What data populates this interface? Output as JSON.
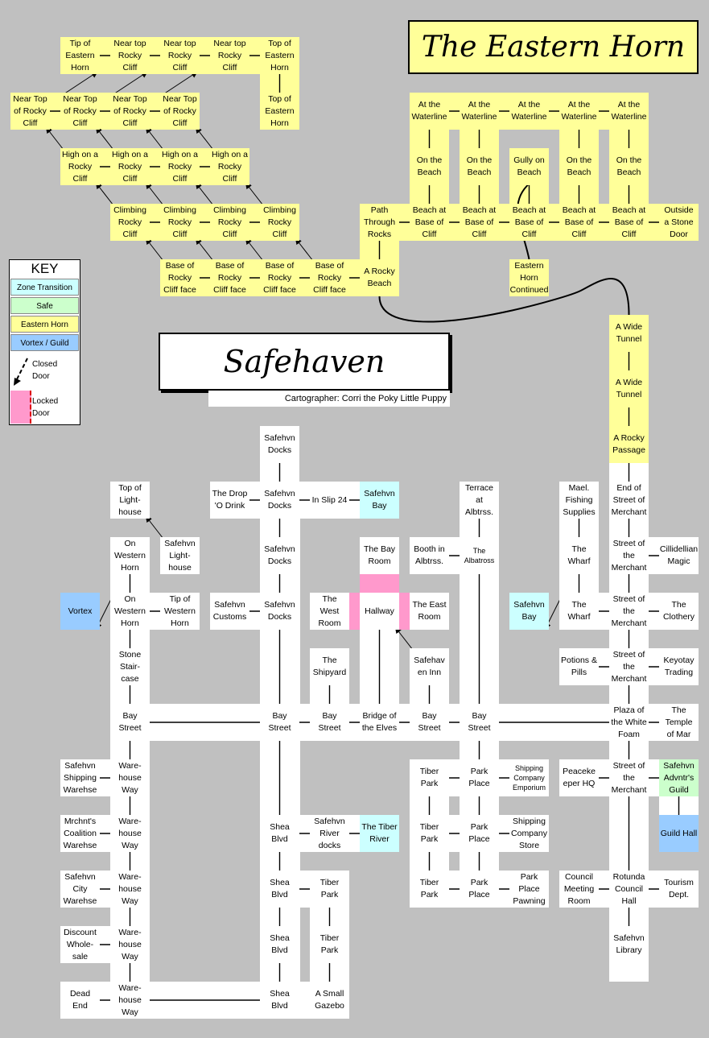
{
  "titles": {
    "eastern_horn": "The Eastern Horn",
    "safehaven": "Safehaven",
    "cartographer": "Cartographer: Corri the Poky Little Puppy"
  },
  "key": {
    "title": "KEY",
    "zone_transition": "Zone Transition",
    "safe": "Safe",
    "eastern_horn": "Eastern Horn",
    "vortex_guild": "Vortex / Guild",
    "closed_door": "Closed\nDoor",
    "locked_door": "Locked\nDoor"
  },
  "colors": {
    "background": "#c0c0c0",
    "eastern_horn": "#ffff99",
    "zone_transition": "#ccffff",
    "safe": "#ccffcc",
    "vortex_guild": "#99ccff",
    "locked_door": "#ff99cc",
    "safehaven_room": "#ffffff"
  },
  "rooms": [
    {
      "id": "eh1",
      "label": "Tip of\nEastern\nHorn",
      "type": "eh",
      "c": 1,
      "r": 0
    },
    {
      "id": "eh2",
      "label": "Near top\nRocky\nCliff",
      "type": "eh",
      "c": 2,
      "r": 0
    },
    {
      "id": "eh3",
      "label": "Near top\nRocky\nCliff",
      "type": "eh",
      "c": 3,
      "r": 0
    },
    {
      "id": "eh4",
      "label": "Near top\nRocky\nCliff",
      "type": "eh",
      "c": 4,
      "r": 0
    },
    {
      "id": "eh5",
      "label": "Top of\nEastern\nHorn",
      "type": "eh",
      "c": 5,
      "r": 0
    },
    {
      "id": "eh6",
      "label": "Near Top\nof Rocky\nCliff",
      "type": "eh",
      "c": 0,
      "r": 1
    },
    {
      "id": "eh7",
      "label": "Near Top\nof Rocky\nCliff",
      "type": "eh",
      "c": 1,
      "r": 1
    },
    {
      "id": "eh8",
      "label": "Near Top\nof Rocky\nCliff",
      "type": "eh",
      "c": 2,
      "r": 1
    },
    {
      "id": "eh9",
      "label": "Near Top\nof Rocky\nCliff",
      "type": "eh",
      "c": 3,
      "r": 1
    },
    {
      "id": "eh10",
      "label": "Top of\nEastern\nHorn",
      "type": "eh",
      "c": 5,
      "r": 1
    },
    {
      "id": "eh11",
      "label": "High on a\nRocky\nCliff",
      "type": "eh",
      "c": 1,
      "r": 2
    },
    {
      "id": "eh12",
      "label": "High on a\nRocky\nCliff",
      "type": "eh",
      "c": 2,
      "r": 2
    },
    {
      "id": "eh13",
      "label": "High on a\nRocky\nCliff",
      "type": "eh",
      "c": 3,
      "r": 2
    },
    {
      "id": "eh14",
      "label": "High on a\nRocky\nCliff",
      "type": "eh",
      "c": 4,
      "r": 2
    },
    {
      "id": "eh15",
      "label": "Climbing\nRocky\nCliff",
      "type": "eh",
      "c": 2,
      "r": 3
    },
    {
      "id": "eh16",
      "label": "Climbing\nRocky\nCliff",
      "type": "eh",
      "c": 3,
      "r": 3
    },
    {
      "id": "eh17",
      "label": "Climbing\nRocky\nCliff",
      "type": "eh",
      "c": 4,
      "r": 3
    },
    {
      "id": "eh18",
      "label": "Climbing\nRocky\nCliff",
      "type": "eh",
      "c": 5,
      "r": 3
    },
    {
      "id": "eh19",
      "label": "Base of\nRocky\nCliff face",
      "type": "eh",
      "c": 3,
      "r": 4
    },
    {
      "id": "eh20",
      "label": "Base of\nRocky\nCliff face",
      "type": "eh",
      "c": 4,
      "r": 4
    },
    {
      "id": "eh21",
      "label": "Base of\nRocky\nCliff face",
      "type": "eh",
      "c": 5,
      "r": 4
    },
    {
      "id": "eh22",
      "label": "Base of\nRocky\nCliff face",
      "type": "eh",
      "c": 6,
      "r": 4
    },
    {
      "id": "eh23",
      "label": "A Rocky\nBeach",
      "type": "eh",
      "c": 7,
      "r": 4
    },
    {
      "id": "eh24",
      "label": "Path\nThrough\nRocks",
      "type": "eh",
      "c": 7,
      "r": 3
    },
    {
      "id": "eh25",
      "label": "At the\nWaterline",
      "type": "eh",
      "c": 8,
      "r": 1
    },
    {
      "id": "eh26",
      "label": "At the\nWaterline",
      "type": "eh",
      "c": 9,
      "r": 1
    },
    {
      "id": "eh27",
      "label": "At the\nWaterline",
      "type": "eh",
      "c": 10,
      "r": 1
    },
    {
      "id": "eh28",
      "label": "At the\nWaterline",
      "type": "eh",
      "c": 11,
      "r": 1
    },
    {
      "id": "eh29",
      "label": "At the\nWaterline",
      "type": "eh",
      "c": 12,
      "r": 1
    },
    {
      "id": "eh30",
      "label": "On the\nBeach",
      "type": "eh",
      "c": 8,
      "r": 2
    },
    {
      "id": "eh31",
      "label": "On the\nBeach",
      "type": "eh",
      "c": 9,
      "r": 2
    },
    {
      "id": "eh32",
      "label": "Gully on\nBeach",
      "type": "eh",
      "c": 10,
      "r": 2
    },
    {
      "id": "eh33",
      "label": "On the\nBeach",
      "type": "eh",
      "c": 11,
      "r": 2
    },
    {
      "id": "eh34",
      "label": "On the\nBeach",
      "type": "eh",
      "c": 12,
      "r": 2
    },
    {
      "id": "eh35",
      "label": "Beach at\nBase of\nCliff",
      "type": "eh",
      "c": 8,
      "r": 3
    },
    {
      "id": "eh36",
      "label": "Beach at\nBase of\nCliff",
      "type": "eh",
      "c": 9,
      "r": 3
    },
    {
      "id": "eh37",
      "label": "Beach at\nBase of\nCliff",
      "type": "eh",
      "c": 10,
      "r": 3
    },
    {
      "id": "eh38",
      "label": "Beach at\nBase of\nCliff",
      "type": "eh",
      "c": 11,
      "r": 3
    },
    {
      "id": "eh39",
      "label": "Beach at\nBase of\nCliff",
      "type": "eh",
      "c": 12,
      "r": 3
    },
    {
      "id": "eh40",
      "label": "Outside\na Stone\nDoor",
      "type": "eh",
      "c": 13,
      "r": 3
    },
    {
      "id": "eh41",
      "label": "Eastern\nHorn\nContinued",
      "type": "eh",
      "c": 10,
      "r": 4
    },
    {
      "id": "eh42",
      "label": "A Wide\nTunnel",
      "type": "eh",
      "c": 12,
      "r": 5
    },
    {
      "id": "eh43",
      "label": "A Wide\nTunnel",
      "type": "eh",
      "c": 12,
      "r": 6
    },
    {
      "id": "eh44",
      "label": "A Rocky\nPassage",
      "type": "eh",
      "c": 12,
      "r": 7
    },
    {
      "id": "s1",
      "label": "Safehvn\nDocks",
      "type": "sf",
      "c": 5,
      "r": 7
    },
    {
      "id": "s2",
      "label": "Top of\nLight-\nhouse",
      "type": "sf",
      "c": 2,
      "r": 8
    },
    {
      "id": "s3",
      "label": "The Drop\n'O Drink",
      "type": "sf",
      "c": 4,
      "r": 8
    },
    {
      "id": "s4",
      "label": "Safehvn\nDocks",
      "type": "sf",
      "c": 5,
      "r": 8
    },
    {
      "id": "s5",
      "label": "In Slip 24",
      "type": "sf",
      "c": 6,
      "r": 8
    },
    {
      "id": "s6",
      "label": "Safehvn\nBay",
      "type": "zt",
      "c": 7,
      "r": 8
    },
    {
      "id": "s7",
      "label": "Terrace\nat\nAlbtrss.",
      "type": "sf",
      "c": 9,
      "r": 8
    },
    {
      "id": "s8",
      "label": "Mael.\nFishing\nSupplies",
      "type": "sf",
      "c": 11,
      "r": 8
    },
    {
      "id": "s9",
      "label": "End of\nStreet of\nMerchant",
      "type": "sf",
      "c": 12,
      "r": 8
    },
    {
      "id": "s10",
      "label": "On\nWestern\nHorn",
      "type": "sf",
      "c": 2,
      "r": 9
    },
    {
      "id": "s11",
      "label": "Safehvn\nLight-\nhouse",
      "type": "sf",
      "c": 3,
      "r": 9
    },
    {
      "id": "s12",
      "label": "Safehvn\nDocks",
      "type": "sf",
      "c": 5,
      "r": 9
    },
    {
      "id": "s13",
      "label": "The Bay\nRoom",
      "type": "sf",
      "c": 7,
      "r": 9
    },
    {
      "id": "s14",
      "label": "Booth in\nAlbtrss.",
      "type": "sf",
      "c": 8,
      "r": 9
    },
    {
      "id": "s15",
      "label": "The\nAlbatross",
      "type": "sf",
      "c": 9,
      "r": 9,
      "small": true
    },
    {
      "id": "s16",
      "label": "The\nWharf",
      "type": "sf",
      "c": 11,
      "r": 9
    },
    {
      "id": "s17",
      "label": "Street of\nthe\nMerchant",
      "type": "sf",
      "c": 12,
      "r": 9
    },
    {
      "id": "s18",
      "label": "Cillidellian\nMagic",
      "type": "sf",
      "c": 13,
      "r": 9
    },
    {
      "id": "s19",
      "label": "Vortex",
      "type": "vg",
      "c": 1,
      "r": 10
    },
    {
      "id": "s20",
      "label": "On\nWestern\nHorn",
      "type": "sf",
      "c": 2,
      "r": 10
    },
    {
      "id": "s21",
      "label": "Tip of\nWestern\nHorn",
      "type": "sf",
      "c": 3,
      "r": 10
    },
    {
      "id": "s22",
      "label": "Safehvn\nCustoms",
      "type": "sf",
      "c": 4,
      "r": 10
    },
    {
      "id": "s23",
      "label": "Safehvn\nDocks",
      "type": "sf",
      "c": 5,
      "r": 10
    },
    {
      "id": "s24",
      "label": "The\nWest\nRoom",
      "type": "sf",
      "c": 6,
      "r": 10
    },
    {
      "id": "s25",
      "label": "Hallway",
      "type": "sf",
      "c": 7,
      "r": 10
    },
    {
      "id": "s26",
      "label": "The East\nRoom",
      "type": "sf",
      "c": 8,
      "r": 10
    },
    {
      "id": "s27",
      "label": "Safehvn\nBay",
      "type": "zt",
      "c": 10,
      "r": 10
    },
    {
      "id": "s28",
      "label": "The\nWharf",
      "type": "sf",
      "c": 11,
      "r": 10
    },
    {
      "id": "s29",
      "label": "Street of\nthe\nMerchant",
      "type": "sf",
      "c": 12,
      "r": 10
    },
    {
      "id": "s30",
      "label": "The\nClothery",
      "type": "sf",
      "c": 13,
      "r": 10
    },
    {
      "id": "s31",
      "label": "Stone\nStair-\ncase",
      "type": "sf",
      "c": 2,
      "r": 11
    },
    {
      "id": "s32",
      "label": "The\nShipyard",
      "type": "sf",
      "c": 6,
      "r": 11
    },
    {
      "id": "s33",
      "label": "Safehav\nen Inn",
      "type": "sf",
      "c": 8,
      "r": 11
    },
    {
      "id": "s34",
      "label": "Potions &\nPills",
      "type": "sf",
      "c": 11,
      "r": 11
    },
    {
      "id": "s35",
      "label": "Street of\nthe\nMerchant",
      "type": "sf",
      "c": 12,
      "r": 11
    },
    {
      "id": "s36",
      "label": "Keyotay\nTrading",
      "type": "sf",
      "c": 13,
      "r": 11
    },
    {
      "id": "s37",
      "label": "Bay\nStreet",
      "type": "sf",
      "c": 2,
      "r": 12
    },
    {
      "id": "s38",
      "label": "Bay\nStreet",
      "type": "sf",
      "c": 5,
      "r": 12
    },
    {
      "id": "s39",
      "label": "Bay\nStreet",
      "type": "sf",
      "c": 6,
      "r": 12
    },
    {
      "id": "s40",
      "label": "Bridge of\nthe Elves",
      "type": "sf",
      "c": 7,
      "r": 12
    },
    {
      "id": "s41",
      "label": "Bay\nStreet",
      "type": "sf",
      "c": 8,
      "r": 12
    },
    {
      "id": "s42",
      "label": "Bay\nStreet",
      "type": "sf",
      "c": 9,
      "r": 12
    },
    {
      "id": "s43",
      "label": "Plaza of\nthe White\nFoam",
      "type": "sf",
      "c": 12,
      "r": 12
    },
    {
      "id": "s44",
      "label": "The\nTemple\nof Mar",
      "type": "sf",
      "c": 13,
      "r": 12
    },
    {
      "id": "s45",
      "label": "Safehvn\nShipping\nWarehse",
      "type": "sf",
      "c": 1,
      "r": 13
    },
    {
      "id": "s46",
      "label": "Ware-\nhouse\nWay",
      "type": "sf",
      "c": 2,
      "r": 13
    },
    {
      "id": "s47",
      "label": "Tiber\nPark",
      "type": "sf",
      "c": 8,
      "r": 13
    },
    {
      "id": "s48",
      "label": "Park\nPlace",
      "type": "sf",
      "c": 9,
      "r": 13
    },
    {
      "id": "s49",
      "label": "Shipping\nCompany\nEmporium",
      "type": "sf",
      "c": 10,
      "r": 13,
      "small": true
    },
    {
      "id": "s50",
      "label": "Peaceke\neper HQ",
      "type": "sf",
      "c": 11,
      "r": 13
    },
    {
      "id": "s51",
      "label": "Street of\nthe\nMerchant",
      "type": "sf",
      "c": 12,
      "r": 13
    },
    {
      "id": "s52",
      "label": "Safehvn\nAdvntr's\nGuild",
      "type": "sg",
      "c": 13,
      "r": 13
    },
    {
      "id": "s53",
      "label": "Mrchnt's\nCoalition\nWarehse",
      "type": "sf",
      "c": 1,
      "r": 14
    },
    {
      "id": "s54",
      "label": "Ware-\nhouse\nWay",
      "type": "sf",
      "c": 2,
      "r": 14
    },
    {
      "id": "s55",
      "label": "Shea\nBlvd",
      "type": "sf",
      "c": 5,
      "r": 14
    },
    {
      "id": "s56",
      "label": "Safehvn\nRiver\ndocks",
      "type": "sf",
      "c": 6,
      "r": 14
    },
    {
      "id": "s57",
      "label": "The Tiber\nRiver",
      "type": "zt",
      "c": 7,
      "r": 14
    },
    {
      "id": "s58",
      "label": "Tiber\nPark",
      "type": "sf",
      "c": 8,
      "r": 14
    },
    {
      "id": "s59",
      "label": "Park\nPlace",
      "type": "sf",
      "c": 9,
      "r": 14
    },
    {
      "id": "s60",
      "label": "Shipping\nCompany\nStore",
      "type": "sf",
      "c": 10,
      "r": 14
    },
    {
      "id": "s61",
      "label": "Guild Hall",
      "type": "vg",
      "c": 13,
      "r": 14
    },
    {
      "id": "s62",
      "label": "Safehvn\nCity\nWarehse",
      "type": "sf",
      "c": 1,
      "r": 15
    },
    {
      "id": "s63",
      "label": "Ware-\nhouse\nWay",
      "type": "sf",
      "c": 2,
      "r": 15
    },
    {
      "id": "s64",
      "label": "Shea\nBlvd",
      "type": "sf",
      "c": 5,
      "r": 15
    },
    {
      "id": "s65",
      "label": "Tiber\nPark",
      "type": "sf",
      "c": 6,
      "r": 15
    },
    {
      "id": "s66",
      "label": "Tiber\nPark",
      "type": "sf",
      "c": 8,
      "r": 15
    },
    {
      "id": "s67",
      "label": "Park\nPlace",
      "type": "sf",
      "c": 9,
      "r": 15
    },
    {
      "id": "s68",
      "label": "Park\nPlace\nPawning",
      "type": "sf",
      "c": 10,
      "r": 15
    },
    {
      "id": "s69",
      "label": "Council\nMeeting\nRoom",
      "type": "sf",
      "c": 11,
      "r": 15
    },
    {
      "id": "s70",
      "label": "Rotunda\nCouncil\nHall",
      "type": "sf",
      "c": 12,
      "r": 15
    },
    {
      "id": "s71",
      "label": "Tourism\nDept.",
      "type": "sf",
      "c": 13,
      "r": 15
    },
    {
      "id": "s72",
      "label": "Discount\nWhole-\nsale",
      "type": "sf",
      "c": 1,
      "r": 16
    },
    {
      "id": "s73",
      "label": "Ware-\nhouse\nWay",
      "type": "sf",
      "c": 2,
      "r": 16
    },
    {
      "id": "s74",
      "label": "Shea\nBlvd",
      "type": "sf",
      "c": 5,
      "r": 16
    },
    {
      "id": "s75",
      "label": "Tiber\nPark",
      "type": "sf",
      "c": 6,
      "r": 16
    },
    {
      "id": "s76",
      "label": "Safehvn\nLibrary",
      "type": "sf",
      "c": 12,
      "r": 16
    },
    {
      "id": "s77",
      "label": "Dead\nEnd",
      "type": "sf",
      "c": 1,
      "r": 17
    },
    {
      "id": "s78",
      "label": "Ware-\nhouse\nWay",
      "type": "sf",
      "c": 2,
      "r": 17
    },
    {
      "id": "s79",
      "label": "Shea\nBlvd",
      "type": "sf",
      "c": 5,
      "r": 17
    },
    {
      "id": "s80",
      "label": "A Small\nGazebo",
      "type": "sf",
      "c": 6,
      "r": 17
    }
  ],
  "links": [
    [
      "eh1",
      "eh2"
    ],
    [
      "eh2",
      "eh3"
    ],
    [
      "eh3",
      "eh4"
    ],
    [
      "eh4",
      "eh5"
    ],
    [
      "eh5",
      "eh10"
    ],
    [
      "eh6",
      "eh7"
    ],
    [
      "eh7",
      "eh8"
    ],
    [
      "eh8",
      "eh9"
    ],
    [
      "eh11",
      "eh12"
    ],
    [
      "eh12",
      "eh13"
    ],
    [
      "eh13",
      "eh14"
    ],
    [
      "eh15",
      "eh16"
    ],
    [
      "eh16",
      "eh17"
    ],
    [
      "eh17",
      "eh18"
    ],
    [
      "eh19",
      "eh20"
    ],
    [
      "eh20",
      "eh21"
    ],
    [
      "eh21",
      "eh22"
    ],
    [
      "eh22",
      "eh23"
    ],
    [
      "eh23",
      "eh24"
    ],
    [
      "eh24",
      "eh35"
    ],
    [
      "eh25",
      "eh26"
    ],
    [
      "eh26",
      "eh27"
    ],
    [
      "eh27",
      "eh28"
    ],
    [
      "eh28",
      "eh29"
    ],
    [
      "eh25",
      "eh30"
    ],
    [
      "eh26",
      "eh31"
    ],
    [
      "eh28",
      "eh33"
    ],
    [
      "eh29",
      "eh34"
    ],
    [
      "eh30",
      "eh35"
    ],
    [
      "eh31",
      "eh36"
    ],
    [
      "eh32",
      "eh37"
    ],
    [
      "eh33",
      "eh38"
    ],
    [
      "eh34",
      "eh39"
    ],
    [
      "eh35",
      "eh36"
    ],
    [
      "eh36",
      "eh37"
    ],
    [
      "eh37",
      "eh38"
    ],
    [
      "eh38",
      "eh39"
    ],
    [
      "eh39",
      "eh40"
    ],
    [
      "eh42",
      "eh43"
    ],
    [
      "eh43",
      "eh44"
    ],
    [
      "eh44",
      "s9"
    ],
    [
      "s1",
      "s4"
    ],
    [
      "s3",
      "s4"
    ],
    [
      "s4",
      "s5"
    ],
    [
      "s5",
      "s6"
    ],
    [
      "s4",
      "s12"
    ],
    [
      "s12",
      "s23"
    ],
    [
      "s22",
      "s23"
    ],
    [
      "s23",
      "s38"
    ],
    [
      "s7",
      "s15"
    ],
    [
      "s14",
      "s15"
    ],
    [
      "s15",
      "s42"
    ],
    [
      "s8",
      "s16"
    ],
    [
      "s16",
      "s28"
    ],
    [
      "s9",
      "s17"
    ],
    [
      "s17",
      "s18"
    ],
    [
      "s17",
      "s29"
    ],
    [
      "s29",
      "s30"
    ],
    [
      "s28",
      "s29"
    ],
    [
      "s29",
      "s35"
    ],
    [
      "s34",
      "s35"
    ],
    [
      "s35",
      "s36"
    ],
    [
      "s35",
      "s43"
    ],
    [
      "s43",
      "s44"
    ],
    [
      "s43",
      "s51"
    ],
    [
      "s50",
      "s51"
    ],
    [
      "s51",
      "s52"
    ],
    [
      "s51",
      "s70"
    ],
    [
      "s69",
      "s70"
    ],
    [
      "s70",
      "s71"
    ],
    [
      "s70",
      "s76"
    ],
    [
      "s10",
      "s20"
    ],
    [
      "s20",
      "s21"
    ],
    [
      "s20",
      "s31"
    ],
    [
      "s31",
      "s37"
    ],
    [
      "s13",
      "s25"
    ],
    [
      "s24",
      "s25"
    ],
    [
      "s25",
      "s26"
    ],
    [
      "s25",
      "s40"
    ],
    [
      "s32",
      "s39"
    ],
    [
      "s33",
      "s41"
    ],
    [
      "s37",
      "s38"
    ],
    [
      "s38",
      "s39"
    ],
    [
      "s39",
      "s40"
    ],
    [
      "s40",
      "s41"
    ],
    [
      "s41",
      "s42"
    ],
    [
      "s42",
      "s43"
    ],
    [
      "s37",
      "s46"
    ],
    [
      "s45",
      "s46"
    ],
    [
      "s46",
      "s54"
    ],
    [
      "s53",
      "s54"
    ],
    [
      "s54",
      "s63"
    ],
    [
      "s62",
      "s63"
    ],
    [
      "s63",
      "s73"
    ],
    [
      "s72",
      "s73"
    ],
    [
      "s73",
      "s78"
    ],
    [
      "s77",
      "s78"
    ],
    [
      "s78",
      "s79"
    ],
    [
      "s38",
      "s55"
    ],
    [
      "s55",
      "s56"
    ],
    [
      "s56",
      "s57"
    ],
    [
      "s55",
      "s64"
    ],
    [
      "s64",
      "s65"
    ],
    [
      "s64",
      "s74"
    ],
    [
      "s65",
      "s75"
    ],
    [
      "s74",
      "s79"
    ],
    [
      "s75",
      "s80"
    ],
    [
      "s42",
      "s48"
    ],
    [
      "s47",
      "s48"
    ],
    [
      "s48",
      "s49"
    ],
    [
      "s48",
      "s59"
    ],
    [
      "s58",
      "s59"
    ],
    [
      "s59",
      "s60"
    ],
    [
      "s47",
      "s58"
    ],
    [
      "s58",
      "s66"
    ],
    [
      "s59",
      "s67"
    ],
    [
      "s66",
      "s67"
    ],
    [
      "s67",
      "s68"
    ],
    [
      "s52",
      "s61"
    ]
  ]
}
